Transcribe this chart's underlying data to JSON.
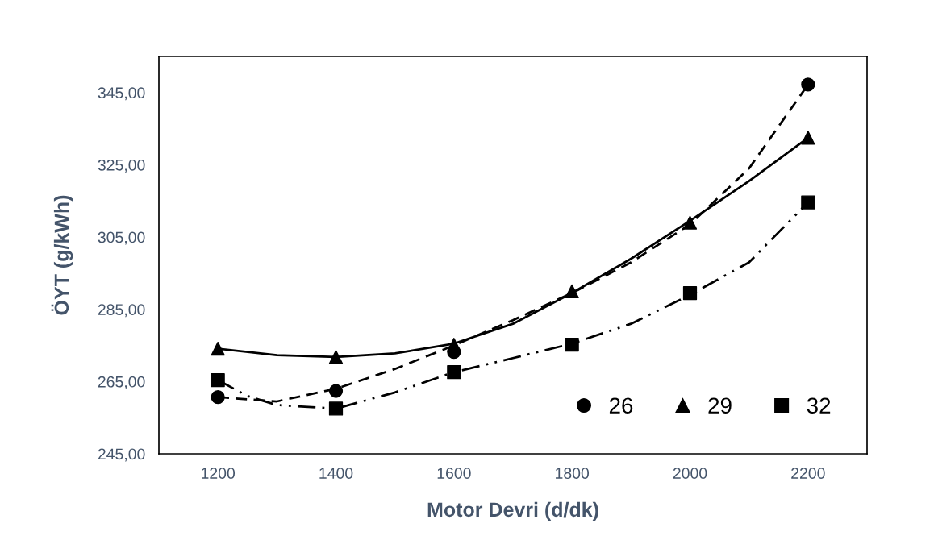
{
  "chart_data": {
    "type": "scatter",
    "xlabel": "Motor Devri (d/dk)",
    "ylabel": "ÖYT (g/kWh)",
    "x": [
      1200,
      1400,
      1600,
      1800,
      2000,
      2200
    ],
    "xlim": [
      1100,
      2300
    ],
    "xticks": [
      1200,
      1400,
      1600,
      1800,
      2000,
      2200
    ],
    "ylim": [
      245,
      355
    ],
    "yticks": [
      {
        "value": 245,
        "label": "245,00"
      },
      {
        "value": 265,
        "label": "265,00"
      },
      {
        "value": 285,
        "label": "285,00"
      },
      {
        "value": 305,
        "label": "305,00"
      },
      {
        "value": 325,
        "label": "325,00"
      },
      {
        "value": 345,
        "label": "345,00"
      }
    ],
    "grid": false,
    "legend": "bottom right",
    "series": [
      {
        "name": "26",
        "marker": "circle",
        "color": "#000000",
        "values": [
          260.7,
          262.4,
          273.2,
          null,
          null,
          347.2
        ]
      },
      {
        "name": "29",
        "marker": "triangle",
        "color": "#000000",
        "values": [
          274.1,
          271.8,
          275.2,
          290.0,
          309.0,
          332.5
        ]
      },
      {
        "name": "32",
        "marker": "square",
        "color": "#000000",
        "values": [
          265.4,
          257.5,
          267.6,
          275.2,
          289.5,
          314.6
        ]
      },
      {
        "type": "line",
        "marker": "none",
        "line_style": "dashed",
        "color": "#000000",
        "x": [
          1200,
          1300,
          1400,
          1500,
          1600,
          1700,
          1800,
          1900,
          2000,
          2100,
          2200
        ],
        "values": [
          260.7,
          259.5,
          263.0,
          268.5,
          275.0,
          282.0,
          289.5,
          298.0,
          308.5,
          324.0,
          347.2
        ]
      },
      {
        "type": "line",
        "marker": "none",
        "line_style": "solid",
        "color": "#000000",
        "x": [
          1200,
          1300,
          1400,
          1500,
          1600,
          1700,
          1800,
          1900,
          2000,
          2100,
          2200
        ],
        "values": [
          274.1,
          272.3,
          271.8,
          272.8,
          275.5,
          281.0,
          289.5,
          299.0,
          309.5,
          320.5,
          332.5
        ]
      },
      {
        "type": "line",
        "marker": "none",
        "line_style": "dashdotdot",
        "color": "#000000",
        "x": [
          1200,
          1250,
          1300,
          1400,
          1500,
          1600,
          1700,
          1800,
          1900,
          2000,
          2100,
          2200
        ],
        "values": [
          265.4,
          261.0,
          258.5,
          257.5,
          262.0,
          267.6,
          271.5,
          275.5,
          281.0,
          289.0,
          298.0,
          314.6
        ]
      }
    ]
  }
}
